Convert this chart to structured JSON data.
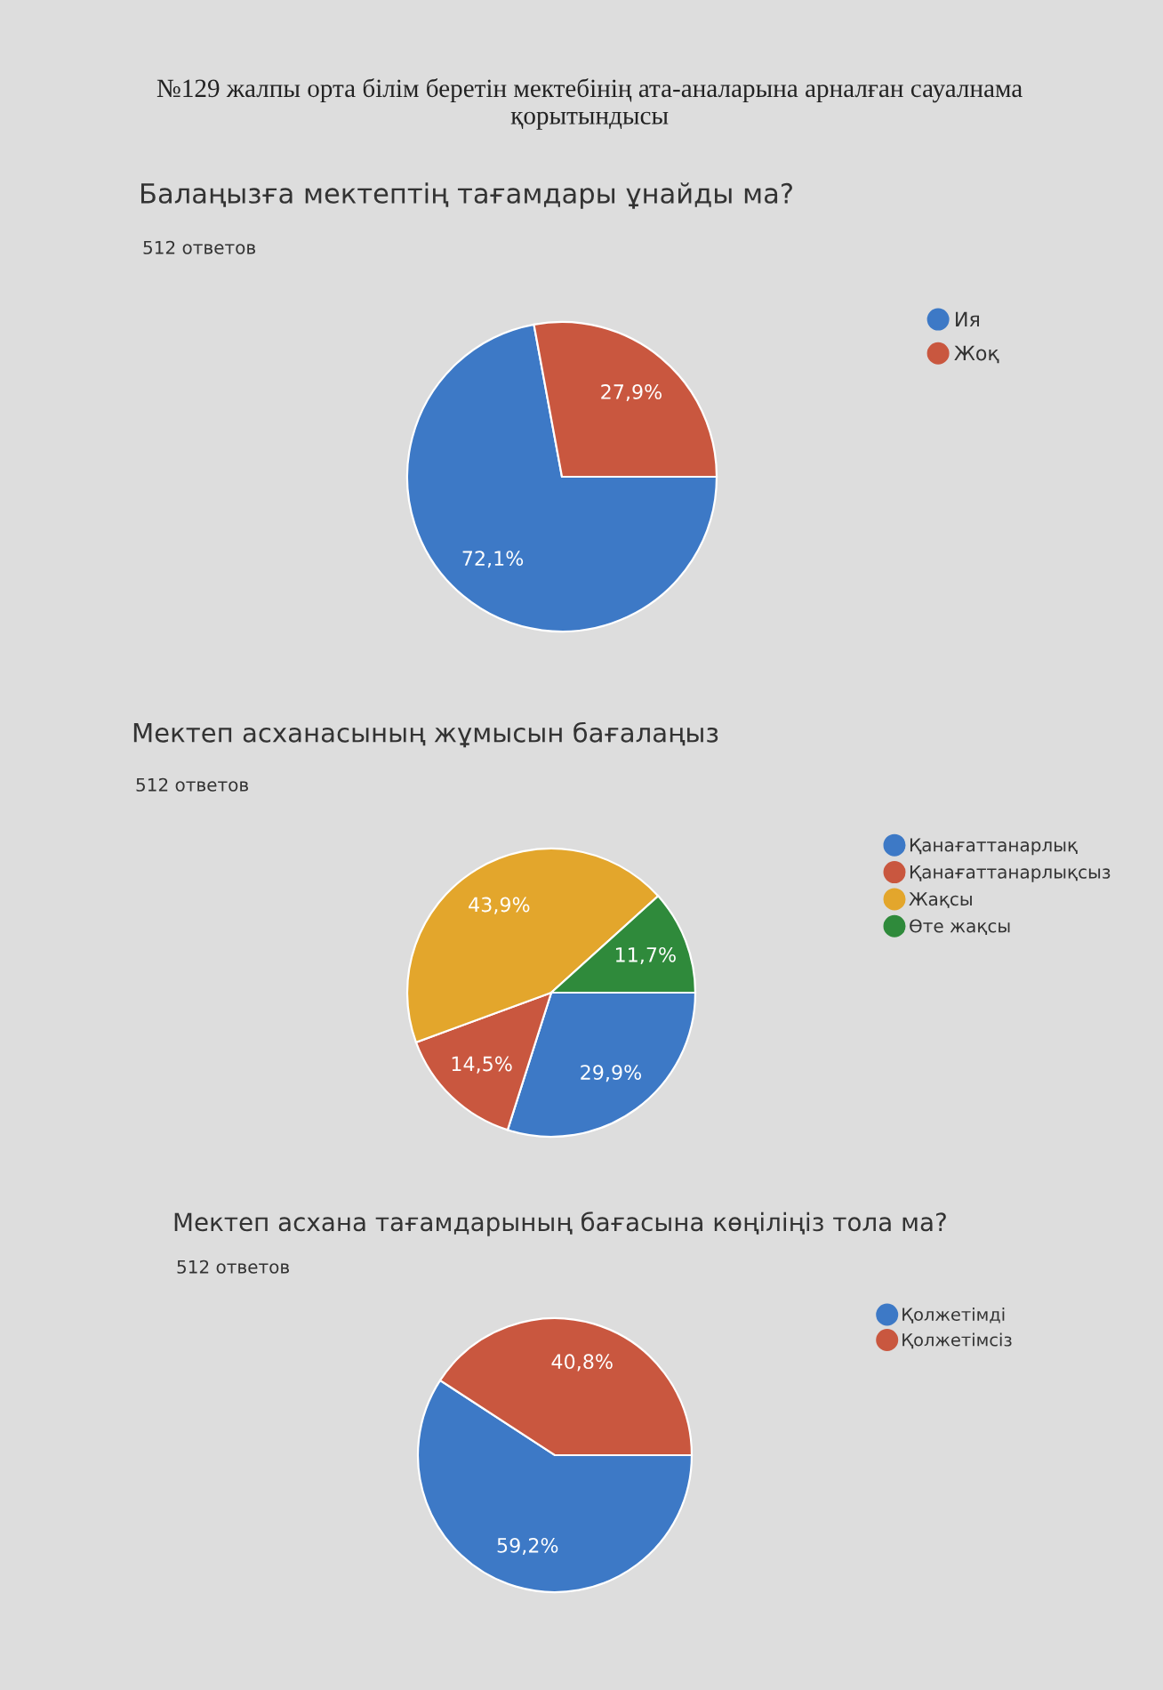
{
  "chart_data": [
    {
      "type": "pie",
      "title": "Балаңызға мектептің тағамдары ұнайды ма?",
      "subtitle": "512 ответов",
      "annotations": [
        "№129 жалпы орта білім беретін мектебінің ата-аналарына арналған сауалнама қорытындысы"
      ],
      "categories": [
        "Ия",
        "Жоқ"
      ],
      "values": [
        72.1,
        27.9
      ],
      "colors": [
        "#3d79c6",
        "#c9573f"
      ],
      "value_labels": [
        "72,1%",
        "27,9%"
      ],
      "legend": "top right"
    },
    {
      "type": "pie",
      "title": "Мектеп асханасының жұмысын бағалаңыз",
      "subtitle": "512 ответов",
      "categories": [
        "Қанағаттанарлық",
        "Қанағаттанарлықсыз",
        "Жақсы",
        "Өте жақсы"
      ],
      "values": [
        29.9,
        14.5,
        43.9,
        11.7
      ],
      "colors": [
        "#3d79c6",
        "#c9573f",
        "#e3a62c",
        "#2f8a3b"
      ],
      "value_labels": [
        "29,9%",
        "14,5%",
        "43,9%",
        "11,7%"
      ],
      "legend": "top right"
    },
    {
      "type": "pie",
      "title": "Мектеп асхана тағамдарының бағасына көңіліңіз тола ма?",
      "subtitle": "512 ответов",
      "categories": [
        "Қолжетімді",
        "Қолжетімсіз"
      ],
      "values": [
        59.2,
        40.8
      ],
      "colors": [
        "#3d79c6",
        "#c9573f"
      ],
      "value_labels": [
        "59,2%",
        "40,8%"
      ],
      "legend": "top right"
    }
  ]
}
